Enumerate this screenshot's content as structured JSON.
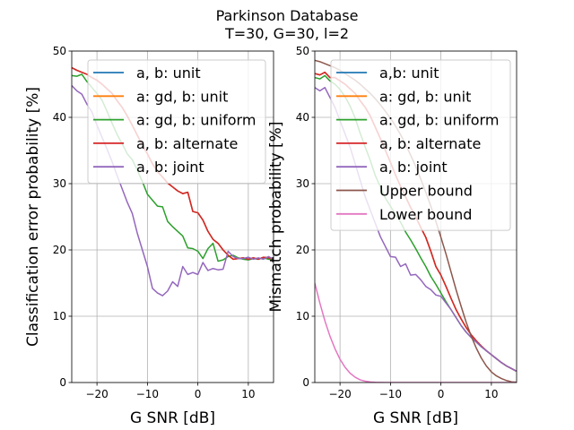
{
  "figure": {
    "title_line1": "Parkinson Database",
    "title_line2": "T=30, G=30, l=2"
  },
  "colors": {
    "blue": "#1f77b4",
    "orange": "#ff7f0e",
    "green": "#2ca02c",
    "red": "#d62728",
    "purple": "#9467bd",
    "brown": "#8c564b",
    "pink": "#e377c2"
  },
  "chart_data": [
    {
      "type": "line",
      "xlabel": "G SNR [dB]",
      "ylabel": "Classification error probability [%]",
      "xlim": [
        -25,
        15
      ],
      "ylim": [
        0,
        50
      ],
      "xticks": [
        -20,
        -10,
        0,
        10
      ],
      "xtick_labels": [
        "−20",
        "−10",
        "0",
        "10"
      ],
      "yticks": [
        0,
        10,
        20,
        30,
        40,
        50
      ],
      "grid": true,
      "legend_position": "top-right",
      "x": [
        -25,
        -24,
        -23,
        -22,
        -21,
        -20,
        -19,
        -18,
        -17,
        -16,
        -15,
        -14,
        -13,
        -12,
        -11,
        -10,
        -9,
        -8,
        -7,
        -6,
        -5,
        -4,
        -3,
        -2,
        -1,
        0,
        1,
        2,
        3,
        4,
        5,
        6,
        7,
        8,
        9,
        10,
        11,
        12,
        13,
        14,
        15
      ],
      "series": [
        {
          "name": "a, b: unit",
          "color": "#1f77b4",
          "values": [
            47.5,
            47.1,
            46.8,
            46.5,
            46.0,
            45.6,
            45.0,
            44.3,
            43.6,
            42.5,
            41.5,
            40.2,
            38.8,
            37.3,
            35.8,
            34.5,
            33.0,
            31.8,
            31.0,
            30.1,
            29.5,
            28.9,
            28.5,
            28.7,
            25.8,
            25.6,
            24.5,
            22.8,
            21.6,
            21.0,
            20.0,
            19.2,
            18.6,
            18.7,
            18.8,
            18.6,
            18.8,
            18.6,
            18.9,
            18.8,
            18.6
          ]
        },
        {
          "name": "a: gd, b: unit",
          "color": "#ff7f0e",
          "values": [
            47.5,
            47.1,
            46.8,
            46.5,
            46.0,
            45.6,
            45.0,
            44.3,
            43.6,
            42.5,
            41.5,
            40.2,
            38.8,
            37.3,
            35.8,
            34.5,
            33.0,
            31.8,
            31.0,
            30.1,
            29.5,
            28.9,
            28.5,
            28.7,
            25.8,
            25.6,
            24.5,
            22.8,
            21.6,
            21.0,
            20.0,
            19.2,
            18.6,
            18.7,
            18.8,
            18.6,
            18.8,
            18.6,
            18.9,
            18.8,
            18.6
          ]
        },
        {
          "name": "a: gd, b: uniform",
          "color": "#2ca02c",
          "values": [
            46.3,
            46.2,
            46.5,
            45.4,
            44.5,
            43.6,
            42.6,
            40.9,
            39.1,
            37.4,
            36.0,
            34.5,
            33.6,
            32.0,
            30.3,
            28.4,
            27.5,
            26.6,
            26.5,
            24.3,
            23.5,
            22.8,
            22.1,
            20.3,
            20.2,
            19.8,
            18.7,
            20.2,
            21.0,
            18.3,
            18.5,
            19.0,
            19.2,
            18.8,
            18.6,
            18.5,
            18.7,
            18.6,
            18.8,
            18.6,
            18.5
          ]
        },
        {
          "name": "a, b: alternate",
          "color": "#d62728",
          "values": [
            47.5,
            47.1,
            46.8,
            46.5,
            46.0,
            45.6,
            45.0,
            44.3,
            43.6,
            42.5,
            41.5,
            40.2,
            38.8,
            37.3,
            35.8,
            34.5,
            33.0,
            31.8,
            31.0,
            30.1,
            29.5,
            28.9,
            28.5,
            28.7,
            25.8,
            25.6,
            24.5,
            22.8,
            21.6,
            21.0,
            20.0,
            19.2,
            18.6,
            18.7,
            18.8,
            18.6,
            18.8,
            18.6,
            18.9,
            18.8,
            18.6
          ]
        },
        {
          "name": "a, b: joint",
          "color": "#9467bd",
          "values": [
            44.8,
            44.0,
            43.5,
            42.0,
            40.8,
            38.8,
            37.0,
            35.2,
            33.3,
            31.2,
            29.2,
            27.2,
            25.5,
            22.5,
            20.0,
            17.5,
            14.2,
            13.5,
            13.1,
            13.8,
            15.2,
            14.5,
            17.5,
            16.3,
            16.6,
            16.3,
            18.1,
            16.9,
            17.2,
            17.0,
            17.1,
            19.8,
            19.0,
            18.7,
            18.7,
            18.9,
            18.6,
            18.8,
            18.6,
            19.0,
            18.6
          ]
        }
      ]
    },
    {
      "type": "line",
      "xlabel": "G SNR [dB]",
      "ylabel": "Mismatch probability [%]",
      "xlim": [
        -25,
        15
      ],
      "ylim": [
        0,
        50
      ],
      "xticks": [
        -20,
        -10,
        0,
        10
      ],
      "xtick_labels": [
        "−20",
        "−10",
        "0",
        "10"
      ],
      "yticks": [
        0,
        10,
        20,
        30,
        40,
        50
      ],
      "grid": true,
      "legend_position": "top-right",
      "x": [
        -25,
        -24,
        -23,
        -22,
        -21,
        -20,
        -19,
        -18,
        -17,
        -16,
        -15,
        -14,
        -13,
        -12,
        -11,
        -10,
        -9,
        -8,
        -7,
        -6,
        -5,
        -4,
        -3,
        -2,
        -1,
        0,
        1,
        2,
        3,
        4,
        5,
        6,
        7,
        8,
        9,
        10,
        11,
        12,
        13,
        14,
        15
      ],
      "series": [
        {
          "name": "a,b: unit",
          "color": "#1f77b4",
          "values": [
            46.6,
            46.4,
            46.8,
            46.0,
            46.0,
            45.5,
            45.0,
            44.3,
            43.6,
            42.5,
            41.5,
            40.2,
            38.5,
            36.8,
            35.0,
            33.2,
            31.3,
            29.6,
            28.0,
            26.4,
            25.0,
            23.4,
            21.9,
            19.8,
            17.5,
            16.2,
            14.5,
            12.7,
            11.0,
            9.6,
            8.3,
            7.2,
            6.3,
            5.5,
            4.8,
            4.2,
            3.6,
            3.0,
            2.5,
            2.1,
            1.7
          ]
        },
        {
          "name": "a: gd, b: unit",
          "color": "#ff7f0e",
          "values": [
            46.6,
            46.4,
            46.8,
            46.0,
            46.0,
            45.5,
            45.0,
            44.3,
            43.6,
            42.5,
            41.5,
            40.2,
            38.5,
            36.8,
            35.0,
            33.2,
            31.3,
            29.6,
            28.0,
            26.4,
            25.0,
            23.4,
            21.9,
            19.8,
            17.5,
            16.2,
            14.5,
            12.7,
            11.0,
            9.6,
            8.3,
            7.2,
            6.3,
            5.5,
            4.8,
            4.2,
            3.6,
            3.0,
            2.5,
            2.1,
            1.7
          ]
        },
        {
          "name": "a: gd, b: uniform",
          "color": "#2ca02c",
          "values": [
            46.0,
            45.8,
            46.3,
            45.5,
            45.0,
            44.2,
            43.1,
            41.7,
            39.9,
            37.6,
            35.5,
            33.5,
            31.2,
            29.5,
            27.8,
            26.6,
            25.3,
            24.2,
            22.7,
            21.5,
            20.2,
            18.8,
            17.5,
            16.0,
            14.8,
            13.5,
            12.2,
            11.0,
            9.8,
            8.6,
            7.6,
            6.8,
            6.1,
            5.4,
            4.8,
            4.2,
            3.6,
            3.0,
            2.5,
            2.1,
            1.7
          ]
        },
        {
          "name": "a, b: alternate",
          "color": "#d62728",
          "values": [
            46.6,
            46.4,
            46.8,
            46.0,
            46.0,
            45.5,
            45.0,
            44.3,
            43.6,
            42.5,
            41.5,
            40.2,
            38.5,
            36.8,
            35.0,
            33.2,
            31.3,
            29.6,
            28.0,
            26.4,
            25.0,
            23.4,
            21.9,
            19.8,
            17.5,
            16.2,
            14.5,
            12.7,
            11.0,
            9.6,
            8.3,
            7.2,
            6.3,
            5.5,
            4.8,
            4.2,
            3.6,
            3.0,
            2.5,
            2.1,
            1.7
          ]
        },
        {
          "name": "a, b: joint",
          "color": "#9467bd",
          "values": [
            44.5,
            44.0,
            44.5,
            43.0,
            41.5,
            39.5,
            37.5,
            35.5,
            33.0,
            30.5,
            28.0,
            26.0,
            24.0,
            22.0,
            20.5,
            19.0,
            18.9,
            17.5,
            17.9,
            16.2,
            16.3,
            15.5,
            14.5,
            14.0,
            13.2,
            13.0,
            12.0,
            11.0,
            9.8,
            8.6,
            7.6,
            6.8,
            6.1,
            5.4,
            4.8,
            4.2,
            3.6,
            3.0,
            2.5,
            2.1,
            1.7
          ]
        },
        {
          "name": "Upper bound",
          "color": "#8c564b",
          "values": [
            48.6,
            48.4,
            48.1,
            47.8,
            47.5,
            47.1,
            46.6,
            46.1,
            45.6,
            45.0,
            44.3,
            43.6,
            42.8,
            41.9,
            40.9,
            39.9,
            38.7,
            37.4,
            35.9,
            34.3,
            32.6,
            30.7,
            28.7,
            26.6,
            24.3,
            21.9,
            19.4,
            16.7,
            14.0,
            11.5,
            9.1,
            7.0,
            5.2,
            3.7,
            2.5,
            1.6,
            1.0,
            0.6,
            0.3,
            0.1,
            0.05
          ]
        },
        {
          "name": "Lower bound",
          "color": "#e377c2",
          "values": [
            15.0,
            12.0,
            9.3,
            7.0,
            5.1,
            3.5,
            2.3,
            1.4,
            0.8,
            0.4,
            0.2,
            0.08,
            0.03,
            0.01,
            0,
            0,
            0,
            0,
            0,
            0,
            0,
            0,
            0,
            0,
            0,
            0,
            0,
            0,
            0,
            0,
            0,
            0,
            0,
            0,
            0,
            0,
            0,
            0,
            0,
            0,
            0
          ]
        }
      ]
    }
  ]
}
